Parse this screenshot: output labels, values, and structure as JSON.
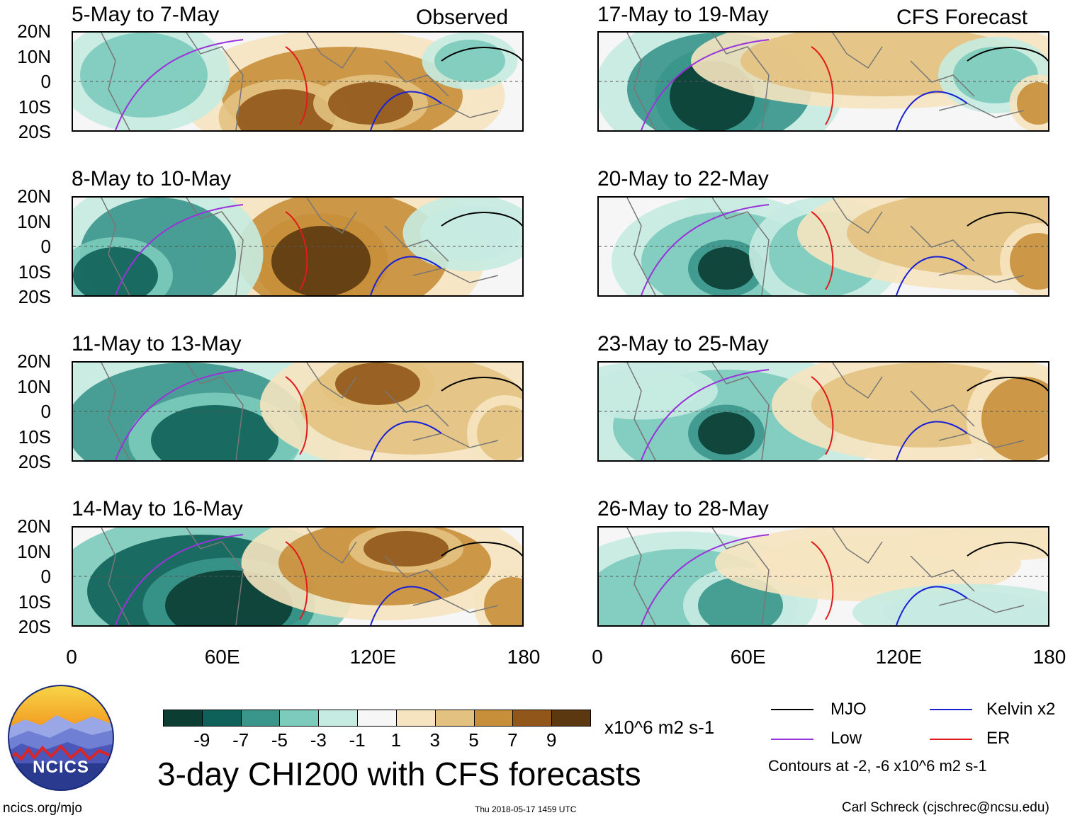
{
  "header": {
    "observed_label": "Observed",
    "forecast_label": "CFS Forecast"
  },
  "panels_left": [
    {
      "title": "5-May to 7-May"
    },
    {
      "title": "8-May to 10-May"
    },
    {
      "title": "11-May to 13-May"
    },
    {
      "title": "14-May to 16-May"
    }
  ],
  "panels_right": [
    {
      "title": "17-May to 19-May"
    },
    {
      "title": "20-May to 22-May"
    },
    {
      "title": "23-May to 25-May"
    },
    {
      "title": "26-May to 28-May"
    }
  ],
  "axes": {
    "lat_labels": [
      "20N",
      "10N",
      "0",
      "10S",
      "20S"
    ],
    "lon_labels": [
      "0",
      "60E",
      "120E",
      "180"
    ]
  },
  "colorbar": {
    "colors": [
      "#0b3d33",
      "#0e6158",
      "#3a968b",
      "#7ccbbd",
      "#c6ebe1",
      "#f6f6f6",
      "#f6e4c0",
      "#e3c281",
      "#c88f3a",
      "#90561a",
      "#5b3810"
    ],
    "labels": [
      "-9",
      "-7",
      "-5",
      "-3",
      "-1",
      "1",
      "3",
      "5",
      "7",
      "9"
    ],
    "units": "x10^6 m2 s-1"
  },
  "main_title": "3-day CHI200 with CFS forecasts",
  "legend": {
    "items": [
      {
        "label": "MJO",
        "color": "#000000"
      },
      {
        "label": "Kelvin x2",
        "color": "#1a22d6"
      },
      {
        "label": "Low",
        "color": "#9a33d9"
      },
      {
        "label": "ER",
        "color": "#e01b1b"
      }
    ],
    "contour_note": "Contours at -2, -6 x10^6 m2 s-1"
  },
  "logo": {
    "text": "NCICS"
  },
  "footer": {
    "url": "ncics.org/mjo",
    "timestamp": "Thu 2018-05-17 1459 UTC",
    "credit": "Carl Schreck (cjschrec@ncsu.edu)"
  }
}
